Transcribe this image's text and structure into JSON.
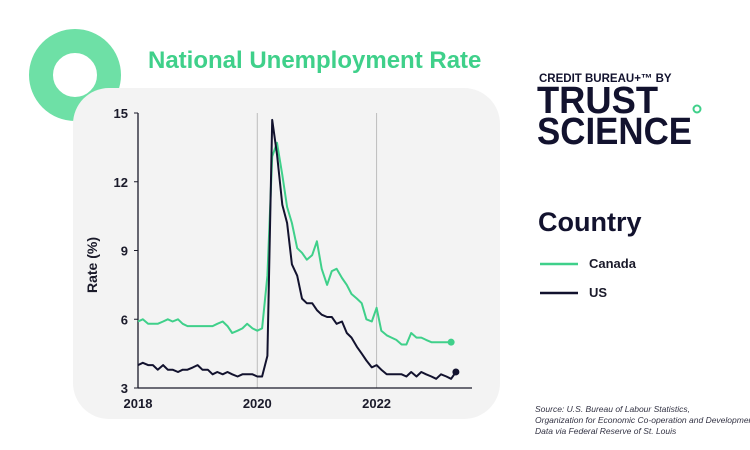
{
  "brand": {
    "line1": "CREDIT BUREAU+™ BY",
    "line2": "TRUST",
    "line3": "SCIENCE",
    "accent_color": "#3fd08a",
    "navy_color": "#12122e"
  },
  "legend": {
    "title": "Country",
    "items": [
      {
        "label": "Canada",
        "color": "#3fd08a"
      },
      {
        "label": "US",
        "color": "#12122e"
      }
    ]
  },
  "source": {
    "line1": "Source: U.S. Bureau of Labour Statistics,",
    "line2": "Organization for Economic Co-operation and Development",
    "line3": "Data via Federal Reserve of St. Louis"
  },
  "chart_data": {
    "type": "line",
    "title": "National Unemployment Rate",
    "xlabel": "",
    "ylabel": "Rate (%)",
    "xlim": [
      2018,
      2023.6
    ],
    "ylim": [
      3,
      15
    ],
    "x_ticks": [
      "2018",
      "2020",
      "2022"
    ],
    "y_ticks": [
      "3",
      "6",
      "9",
      "12",
      "15"
    ],
    "grid": "vertical",
    "legend_position": "right",
    "series": [
      {
        "name": "Canada",
        "color": "#3fd08a",
        "end_marker": true,
        "points": [
          [
            2018.0,
            5.9
          ],
          [
            2018.08,
            6.0
          ],
          [
            2018.17,
            5.8
          ],
          [
            2018.25,
            5.8
          ],
          [
            2018.33,
            5.8
          ],
          [
            2018.42,
            5.9
          ],
          [
            2018.5,
            6.0
          ],
          [
            2018.58,
            5.9
          ],
          [
            2018.67,
            6.0
          ],
          [
            2018.75,
            5.8
          ],
          [
            2018.83,
            5.7
          ],
          [
            2018.92,
            5.7
          ],
          [
            2019.0,
            5.7
          ],
          [
            2019.08,
            5.7
          ],
          [
            2019.17,
            5.7
          ],
          [
            2019.25,
            5.7
          ],
          [
            2019.33,
            5.8
          ],
          [
            2019.42,
            5.9
          ],
          [
            2019.5,
            5.7
          ],
          [
            2019.58,
            5.4
          ],
          [
            2019.67,
            5.5
          ],
          [
            2019.75,
            5.6
          ],
          [
            2019.83,
            5.8
          ],
          [
            2019.92,
            5.6
          ],
          [
            2020.0,
            5.5
          ],
          [
            2020.08,
            5.6
          ],
          [
            2020.17,
            7.9
          ],
          [
            2020.25,
            13.1
          ],
          [
            2020.33,
            13.7
          ],
          [
            2020.42,
            12.3
          ],
          [
            2020.5,
            10.9
          ],
          [
            2020.58,
            10.2
          ],
          [
            2020.67,
            9.1
          ],
          [
            2020.75,
            8.9
          ],
          [
            2020.83,
            8.6
          ],
          [
            2020.92,
            8.8
          ],
          [
            2021.0,
            9.4
          ],
          [
            2021.08,
            8.2
          ],
          [
            2021.17,
            7.5
          ],
          [
            2021.25,
            8.1
          ],
          [
            2021.33,
            8.2
          ],
          [
            2021.42,
            7.8
          ],
          [
            2021.5,
            7.5
          ],
          [
            2021.58,
            7.1
          ],
          [
            2021.67,
            6.9
          ],
          [
            2021.75,
            6.7
          ],
          [
            2021.83,
            6.0
          ],
          [
            2021.92,
            5.9
          ],
          [
            2022.0,
            6.5
          ],
          [
            2022.08,
            5.5
          ],
          [
            2022.17,
            5.3
          ],
          [
            2022.25,
            5.2
          ],
          [
            2022.33,
            5.1
          ],
          [
            2022.42,
            4.9
          ],
          [
            2022.5,
            4.9
          ],
          [
            2022.58,
            5.4
          ],
          [
            2022.67,
            5.2
          ],
          [
            2022.75,
            5.2
          ],
          [
            2022.83,
            5.1
          ],
          [
            2022.92,
            5.0
          ],
          [
            2023.0,
            5.0
          ],
          [
            2023.08,
            5.0
          ],
          [
            2023.17,
            5.0
          ],
          [
            2023.25,
            5.0
          ]
        ]
      },
      {
        "name": "US",
        "color": "#12122e",
        "end_marker": true,
        "points": [
          [
            2018.0,
            4.0
          ],
          [
            2018.08,
            4.1
          ],
          [
            2018.17,
            4.0
          ],
          [
            2018.25,
            4.0
          ],
          [
            2018.33,
            3.8
          ],
          [
            2018.42,
            4.0
          ],
          [
            2018.5,
            3.8
          ],
          [
            2018.58,
            3.8
          ],
          [
            2018.67,
            3.7
          ],
          [
            2018.75,
            3.8
          ],
          [
            2018.83,
            3.8
          ],
          [
            2018.92,
            3.9
          ],
          [
            2019.0,
            4.0
          ],
          [
            2019.08,
            3.8
          ],
          [
            2019.17,
            3.8
          ],
          [
            2019.25,
            3.6
          ],
          [
            2019.33,
            3.7
          ],
          [
            2019.42,
            3.6
          ],
          [
            2019.5,
            3.7
          ],
          [
            2019.58,
            3.6
          ],
          [
            2019.67,
            3.5
          ],
          [
            2019.75,
            3.6
          ],
          [
            2019.83,
            3.6
          ],
          [
            2019.92,
            3.6
          ],
          [
            2020.0,
            3.5
          ],
          [
            2020.08,
            3.5
          ],
          [
            2020.17,
            4.4
          ],
          [
            2020.25,
            14.7
          ],
          [
            2020.33,
            13.2
          ],
          [
            2020.42,
            11.0
          ],
          [
            2020.5,
            10.2
          ],
          [
            2020.58,
            8.4
          ],
          [
            2020.67,
            7.9
          ],
          [
            2020.75,
            6.9
          ],
          [
            2020.83,
            6.7
          ],
          [
            2020.92,
            6.7
          ],
          [
            2021.0,
            6.4
          ],
          [
            2021.08,
            6.2
          ],
          [
            2021.17,
            6.1
          ],
          [
            2021.25,
            6.1
          ],
          [
            2021.33,
            5.8
          ],
          [
            2021.42,
            5.9
          ],
          [
            2021.5,
            5.4
          ],
          [
            2021.58,
            5.2
          ],
          [
            2021.67,
            4.8
          ],
          [
            2021.75,
            4.5
          ],
          [
            2021.83,
            4.2
          ],
          [
            2021.92,
            3.9
          ],
          [
            2022.0,
            4.0
          ],
          [
            2022.08,
            3.8
          ],
          [
            2022.17,
            3.6
          ],
          [
            2022.25,
            3.6
          ],
          [
            2022.33,
            3.6
          ],
          [
            2022.42,
            3.6
          ],
          [
            2022.5,
            3.5
          ],
          [
            2022.58,
            3.7
          ],
          [
            2022.67,
            3.5
          ],
          [
            2022.75,
            3.7
          ],
          [
            2022.83,
            3.6
          ],
          [
            2022.92,
            3.5
          ],
          [
            2023.0,
            3.4
          ],
          [
            2023.08,
            3.6
          ],
          [
            2023.17,
            3.5
          ],
          [
            2023.25,
            3.4
          ],
          [
            2023.33,
            3.7
          ]
        ]
      }
    ]
  }
}
